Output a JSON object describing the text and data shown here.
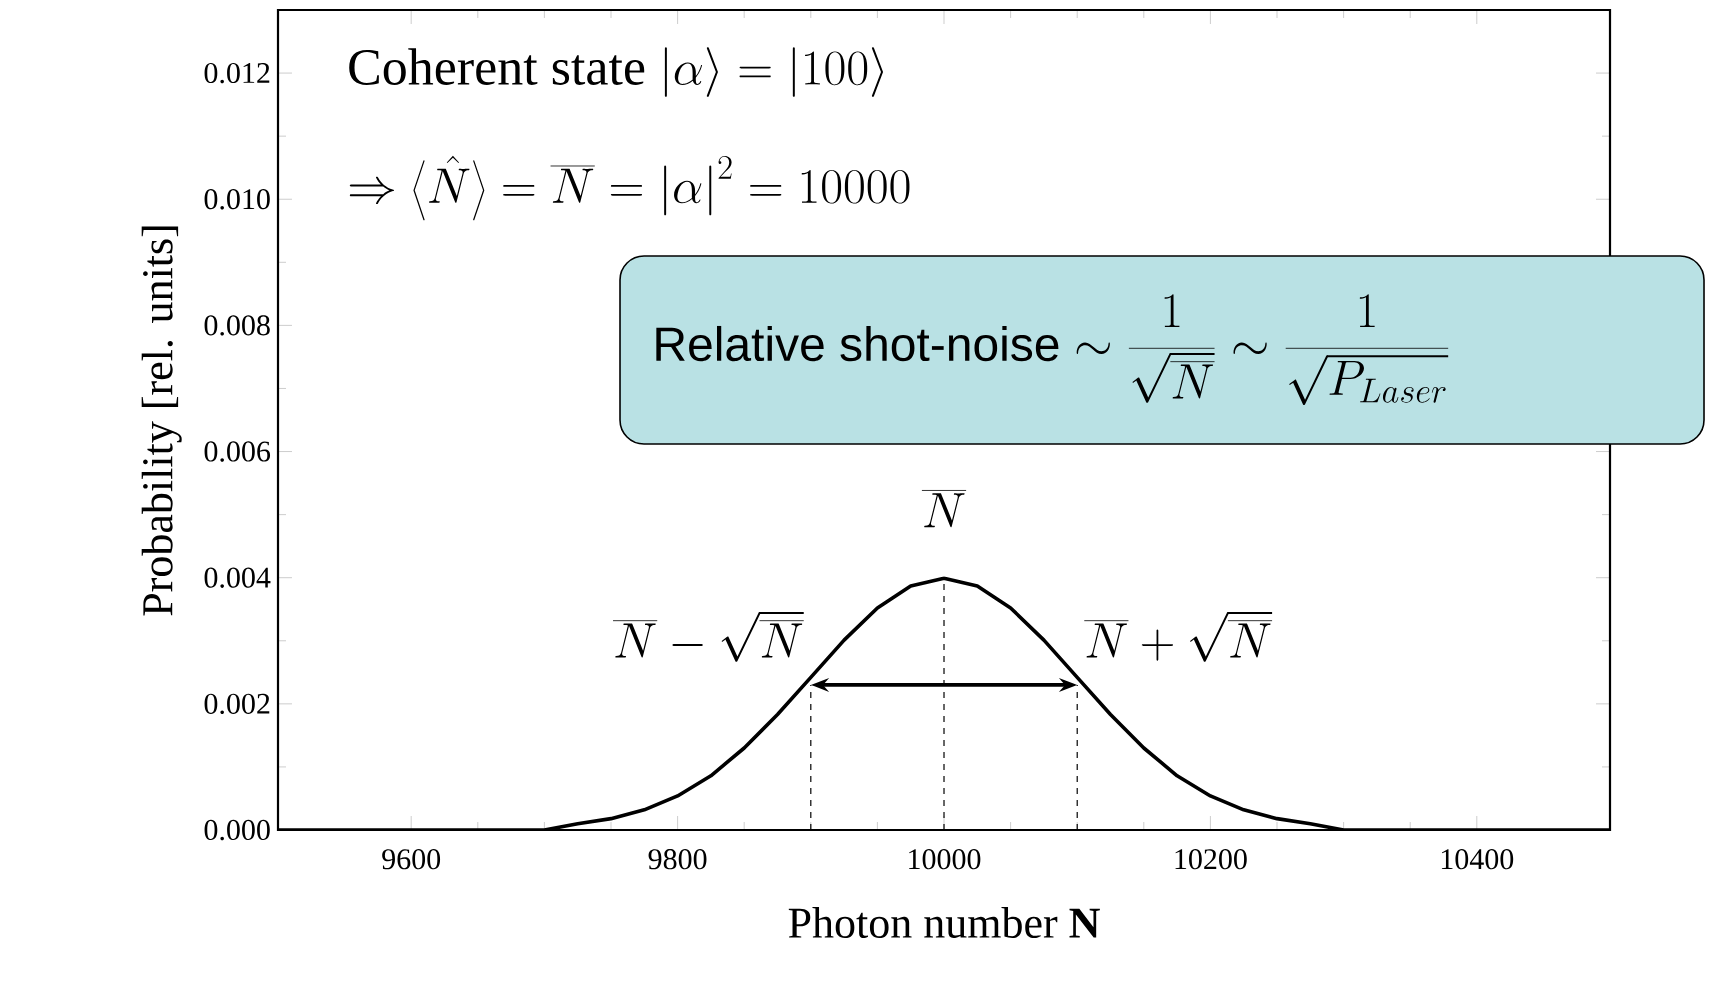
{
  "chart_data": {
    "type": "line",
    "xlabel": "Photon number **N**",
    "ylabel": "Probability [rel. units]",
    "x": [
      9500,
      9550,
      9600,
      9650,
      9700,
      9725,
      9750,
      9775,
      9800,
      9825,
      9850,
      9875,
      9900,
      9925,
      9950,
      9975,
      10000,
      10025,
      10050,
      10075,
      10100,
      10125,
      10150,
      10175,
      10200,
      10225,
      10250,
      10275,
      10300,
      10350,
      10400,
      10450,
      10500
    ],
    "series": [
      {
        "color": "#000000",
        "values": [
          0,
          0,
          0,
          0,
          0,
          0.0001,
          0.00018,
          0.00032,
          0.00054,
          0.00086,
          0.0013,
          0.00183,
          0.00242,
          0.00301,
          0.00352,
          0.00387,
          0.00399,
          0.00387,
          0.00352,
          0.00301,
          0.00242,
          0.00183,
          0.0013,
          0.00086,
          0.00054,
          0.00032,
          0.00018,
          0.0001,
          0,
          0,
          0,
          0,
          0
        ]
      }
    ],
    "xlim": [
      9500,
      10500
    ],
    "xticks": [
      9600,
      9800,
      10000,
      10200,
      10400
    ],
    "ylim": [
      0,
      0.013
    ],
    "yticks": [
      {
        "value": 0,
        "label": "0.000"
      },
      {
        "value": 0.002,
        "label": "0.002"
      },
      {
        "value": 0.004,
        "label": "0.004"
      },
      {
        "value": 0.006,
        "label": "0.006"
      },
      {
        "value": 0.008,
        "label": "0.008"
      },
      {
        "value": 0.01,
        "label": "0.010"
      },
      {
        "value": 0.012,
        "label": "0.012"
      }
    ],
    "ref_lines": [
      {
        "axis": "x",
        "value": 9900,
        "line_style": "dashed"
      },
      {
        "axis": "x",
        "value": 10000,
        "line_style": "dashed"
      },
      {
        "axis": "x",
        "value": 10100,
        "line_style": "dashed"
      }
    ],
    "annotations": [
      "Coherent state",
      "\\left|\\alpha\\right\\rangle=\\left|100\\right\\rangle",
      "\\Rightarrow\\left\\langle\\hat{N}\\right\\rangle=\\overline{N}=\\left|\\alpha\\right|^{2}=10000",
      "Relative shot-noise",
      "\\sim\\frac{1}{\\sqrt{\\overline{N}}}\\sim\\frac{1}{\\sqrt{P_{Laser}}}",
      {
        "text": "\\overline{N}",
        "x": 10000,
        "y": 0.00399
      },
      {
        "text": "\\overline{N}-\\sqrt{\\overline{N}}",
        "x": 9900,
        "y": 0.0023
      },
      {
        "text": "\\overline{N}+\\sqrt{\\overline{N}}",
        "x": 10100,
        "y": 0.0023
      }
    ]
  }
}
